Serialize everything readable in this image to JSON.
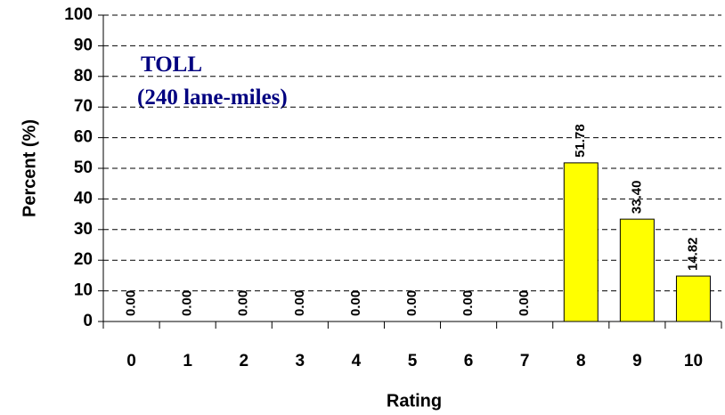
{
  "chart_data": {
    "type": "bar",
    "annotations": [
      "TOLL",
      "(240 lane-miles)"
    ],
    "xlabel": "Rating",
    "ylabel": "Percent (%)",
    "categories": [
      "0",
      "1",
      "2",
      "3",
      "4",
      "5",
      "6",
      "7",
      "8",
      "9",
      "10"
    ],
    "values": [
      0,
      0,
      0,
      0,
      0,
      0,
      0,
      0,
      51.78,
      33.4,
      14.82
    ],
    "value_labels": [
      "0.00",
      "0.00",
      "0.00",
      "0.00",
      "0.00",
      "0.00",
      "0.00",
      "0.00",
      "51.78",
      "33.40",
      "14.82"
    ],
    "color": "#ffff00",
    "ylim": [
      0,
      100
    ],
    "yticks": [
      0,
      10,
      20,
      30,
      40,
      50,
      60,
      70,
      80,
      90,
      100
    ],
    "grid": true
  }
}
